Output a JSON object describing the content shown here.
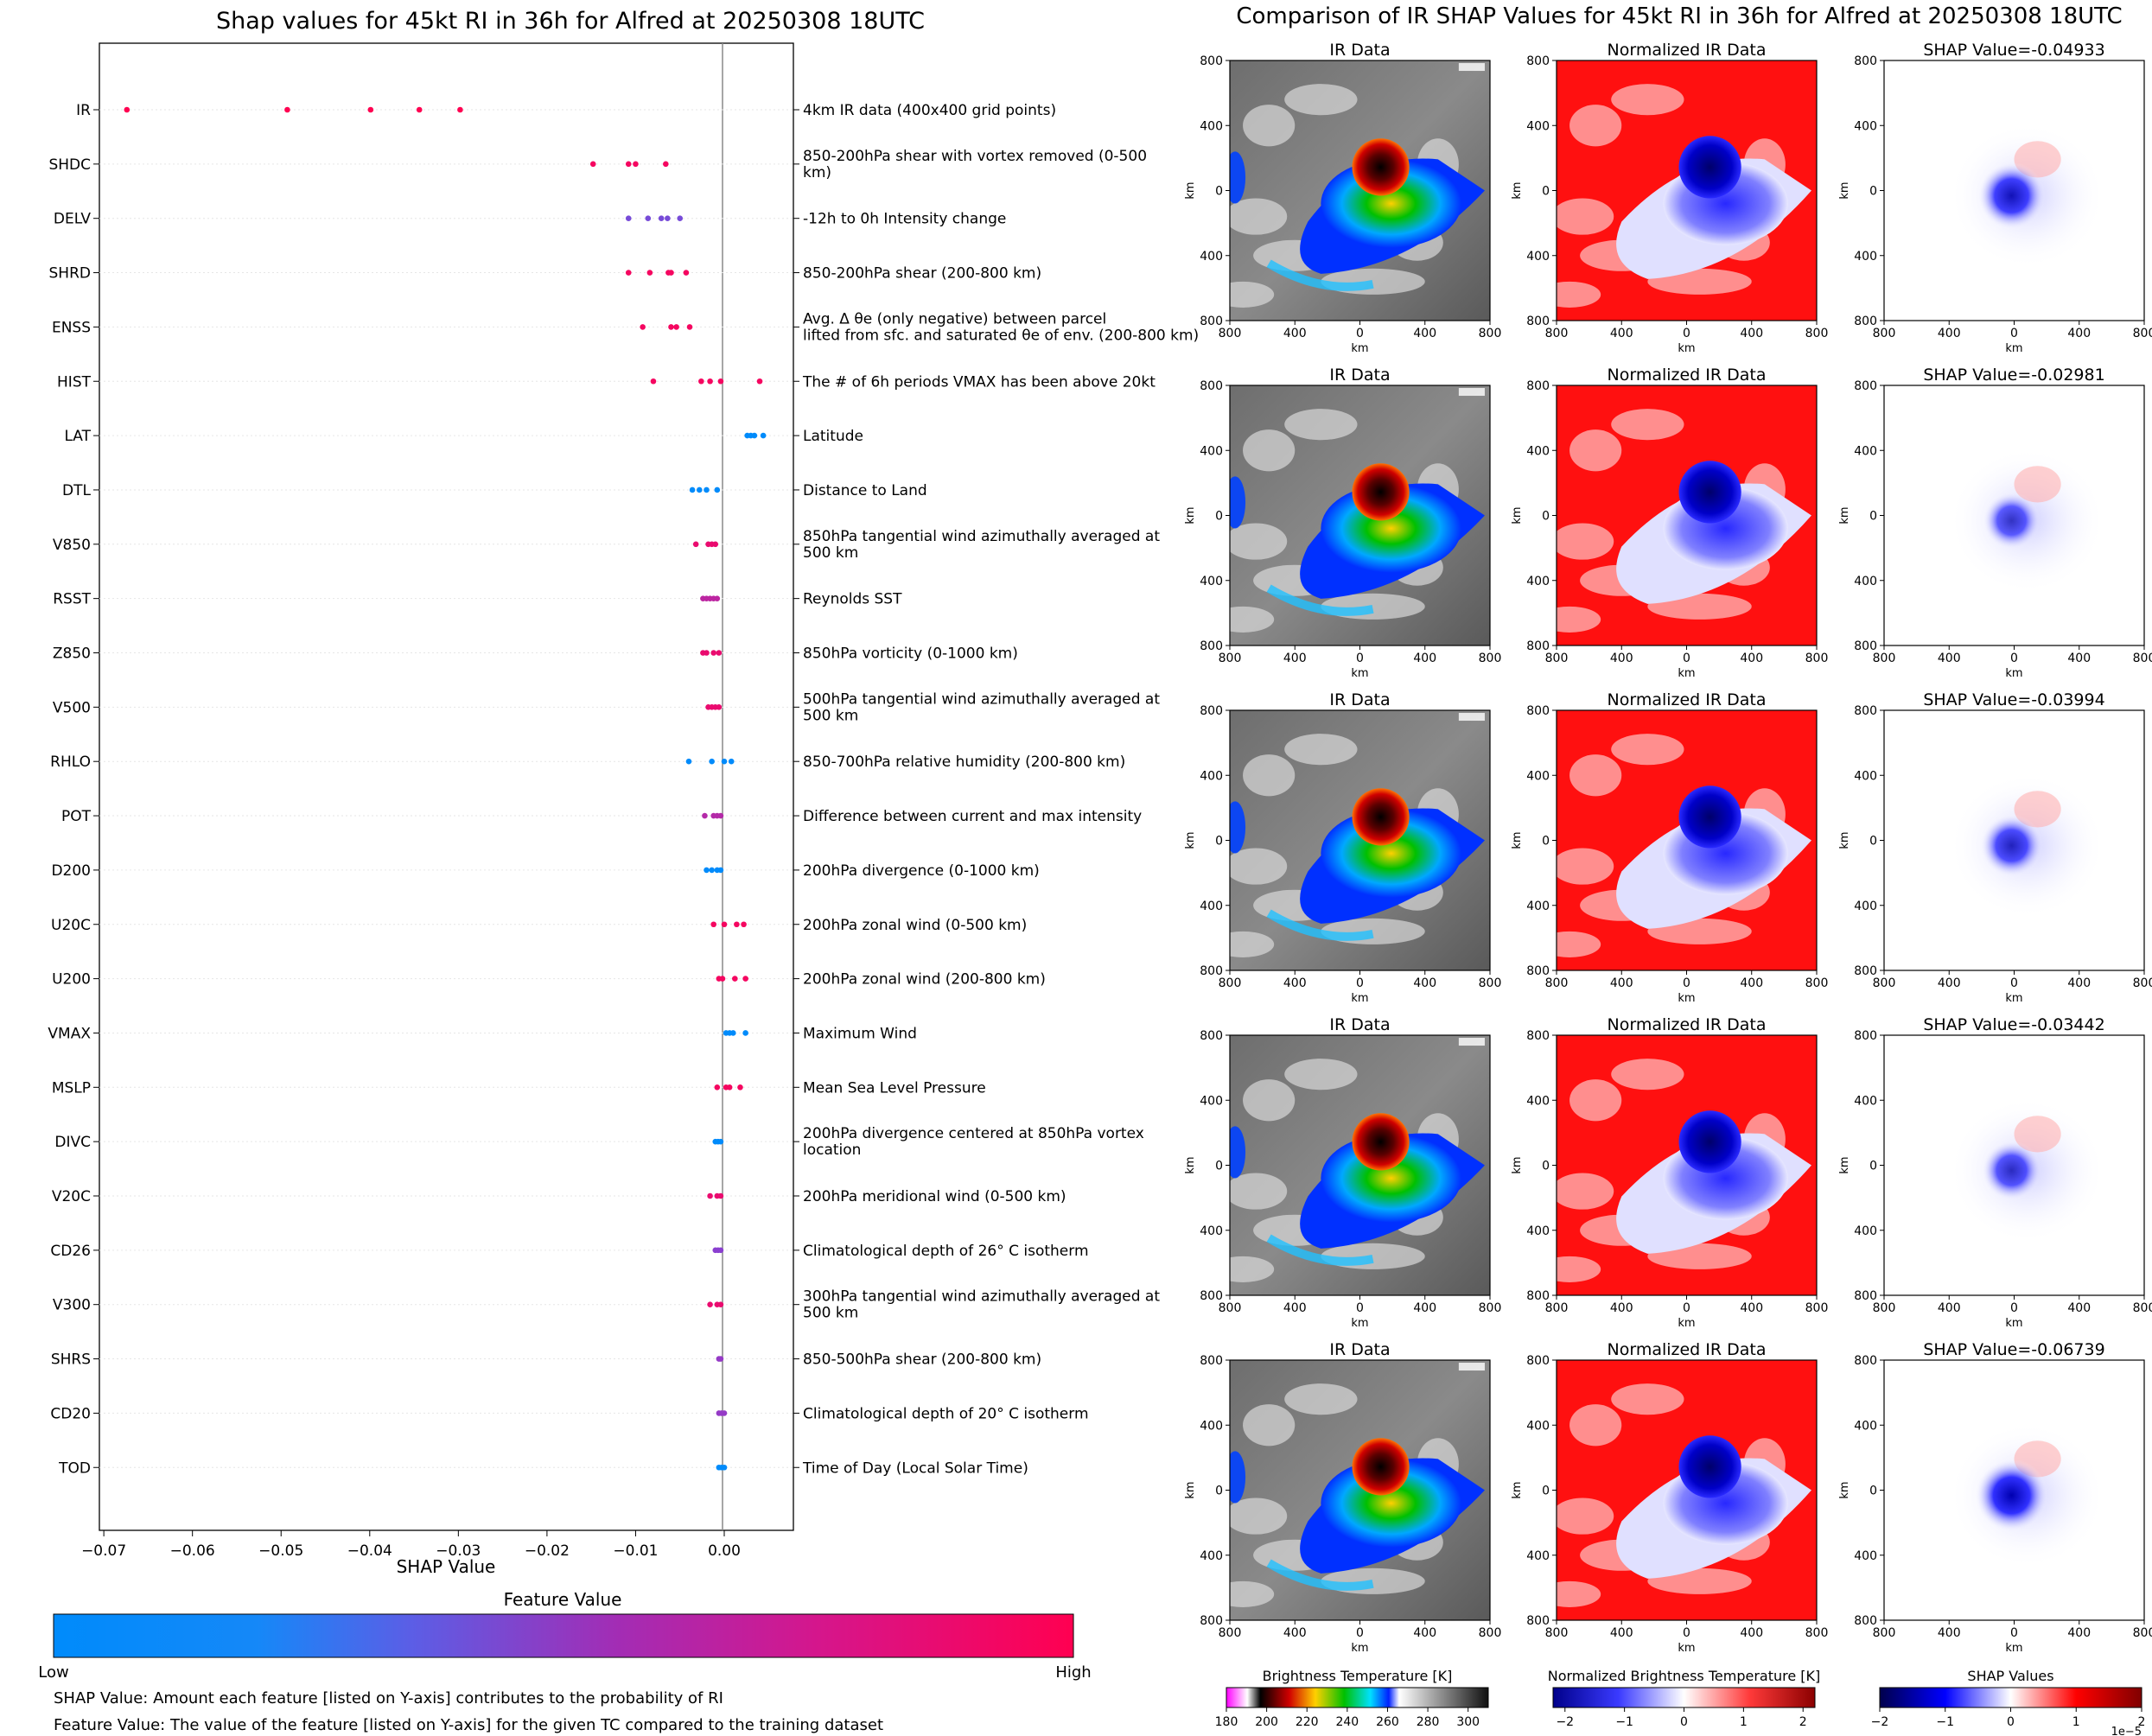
{
  "left_panel": {
    "title": "Shap values for 45kt RI in 36h for Alfred at 20250308 18UTC",
    "xlabel": "SHAP Value",
    "colorbar": {
      "title": "Feature Value",
      "low_label": "Low",
      "high_label": "High",
      "colors": [
        "#008bfb",
        "#3f6fef",
        "#8a3fd0",
        "#b42aa8",
        "#d5168c",
        "#ff0051"
      ]
    },
    "notes": [
      "SHAP Value: Amount each feature [listed on Y-axis] contributes to the probability of RI",
      "Feature Value: The value of the feature [listed on Y-axis] for the given TC compared to the training dataset"
    ]
  },
  "right_panel": {
    "title": "Comparison of IR SHAP Values for 45kt RI in 36h for Alfred at 20250308 18UTC",
    "column_titles": [
      "IR Data",
      "Normalized IR Data"
    ],
    "shap_titles": [
      "SHAP Value=-0.04933",
      "SHAP Value=-0.02981",
      "SHAP Value=-0.03994",
      "SHAP Value=-0.03442",
      "SHAP Value=-0.06739"
    ],
    "axis_label": "km",
    "tick_labels": [
      "800",
      "400",
      "0",
      "400",
      "800"
    ],
    "colorbars": [
      {
        "title": "Brightness Temperature [K]",
        "ticks": [
          "180",
          "200",
          "220",
          "240",
          "260",
          "280",
          "300"
        ]
      },
      {
        "title": "Normalized Brightness Temperature [K]",
        "ticks": [
          "−2",
          "−1",
          "0",
          "1",
          "2"
        ]
      },
      {
        "title": "SHAP Values",
        "ticks": [
          "−2",
          "−1",
          "0",
          "1",
          "2"
        ],
        "offset": "1e−5"
      }
    ]
  },
  "chart_data": [
    {
      "type": "scatter",
      "title": "Shap values for 45kt RI in 36h for Alfred at 20250308 18UTC",
      "xlabel": "SHAP Value",
      "ylabel": "",
      "xlim": [
        -0.0705,
        0.0078
      ],
      "xticks": [
        -0.07,
        -0.06,
        -0.05,
        -0.04,
        -0.03,
        -0.02,
        -0.01,
        0.0
      ],
      "xtick_labels": [
        "−0.07",
        "−0.06",
        "−0.05",
        "−0.04",
        "−0.03",
        "−0.02",
        "−0.01",
        "0.00"
      ],
      "grid": false,
      "features": [
        {
          "name": "IR",
          "description": "4km IR data (400x400 grid points)",
          "values": [
            -0.0674,
            -0.0493,
            -0.0399,
            -0.0344,
            -0.0298
          ],
          "feature_value": 1.0
        },
        {
          "name": "SHDC",
          "description": "850-200hPa shear with vortex removed (0-500 km)",
          "values": [
            -0.0148,
            -0.0108,
            -0.01,
            -0.0066
          ],
          "feature_value": 0.95
        },
        {
          "name": "DELV",
          "description": "-12h to 0h Intensity change",
          "values": [
            -0.0108,
            -0.0086,
            -0.0071,
            -0.0064,
            -0.005
          ],
          "feature_value": 0.35
        },
        {
          "name": "SHRD",
          "description": "850-200hPa shear (200-800 km)",
          "values": [
            -0.0108,
            -0.0084,
            -0.0063,
            -0.006,
            -0.0043
          ],
          "feature_value": 0.95
        },
        {
          "name": "ENSS",
          "description": "Avg. Δ θe (only negative) between parcel lifted from sfc. and saturated θe of env. (200-800 km)",
          "values": [
            -0.0092,
            -0.006,
            -0.0054,
            -0.0039
          ],
          "feature_value": 0.95
        },
        {
          "name": "HIST",
          "description": "The # of 6h periods VMAX has been above 20kt",
          "values": [
            -0.008,
            -0.0026,
            -0.0016,
            -0.0004,
            0.004
          ],
          "feature_value": 0.95
        },
        {
          "name": "LAT",
          "description": "Latitude",
          "values": [
            0.0026,
            0.003,
            0.0034,
            0.0044
          ],
          "feature_value": 0.0
        },
        {
          "name": "DTL",
          "description": "Distance to Land",
          "values": [
            -0.0036,
            -0.0028,
            -0.002,
            -0.0008
          ],
          "feature_value": 0.0
        },
        {
          "name": "V850",
          "description": "850hPa tangential wind azimuthally averaged at 500 km",
          "values": [
            -0.0032,
            -0.0018,
            -0.0014,
            -0.001
          ],
          "feature_value": 0.9
        },
        {
          "name": "RSST",
          "description": "Reynolds SST",
          "values": [
            -0.0024,
            -0.002,
            -0.0016,
            -0.0012,
            -0.0008
          ],
          "feature_value": 0.65
        },
        {
          "name": "Z850",
          "description": "850hPa vorticity (0-1000 km)",
          "values": [
            -0.0024,
            -0.002,
            -0.0012,
            -0.0006
          ],
          "feature_value": 0.9
        },
        {
          "name": "V500",
          "description": "500hPa tangential wind azimuthally averaged at 500 km",
          "values": [
            -0.0018,
            -0.0014,
            -0.001,
            -0.0006
          ],
          "feature_value": 0.9
        },
        {
          "name": "RHLO",
          "description": "850-700hPa relative humidity (200-800 km)",
          "values": [
            -0.004,
            -0.0014,
            0.0,
            0.0008
          ],
          "feature_value": 0.0
        },
        {
          "name": "POT",
          "description": "Difference between current and max intensity",
          "values": [
            -0.0022,
            -0.0012,
            -0.0008,
            -0.0004
          ],
          "feature_value": 0.6
        },
        {
          "name": "D200",
          "description": "200hPa divergence (0-1000 km)",
          "values": [
            -0.002,
            -0.0014,
            -0.0008,
            -0.0004
          ],
          "feature_value": 0.0
        },
        {
          "name": "U20C",
          "description": "200hPa zonal wind (0-500 km)",
          "values": [
            -0.0012,
            0.0,
            0.0014,
            0.0022
          ],
          "feature_value": 0.95
        },
        {
          "name": "U200",
          "description": "200hPa zonal wind (200-800 km)",
          "values": [
            -0.0006,
            -0.0002,
            0.0012,
            0.0024
          ],
          "feature_value": 0.95
        },
        {
          "name": "VMAX",
          "description": "Maximum Wind",
          "values": [
            0.0002,
            0.0006,
            0.001,
            0.0024
          ],
          "feature_value": 0.0
        },
        {
          "name": "MSLP",
          "description": "Mean Sea Level Pressure",
          "values": [
            -0.0008,
            0.0002,
            0.0006,
            0.0018
          ],
          "feature_value": 0.95
        },
        {
          "name": "DIVC",
          "description": "200hPa divergence centered at 850hPa vortex location",
          "values": [
            -0.001,
            -0.0007,
            -0.0004
          ],
          "feature_value": 0.0
        },
        {
          "name": "V20C",
          "description": "200hPa meridional wind (0-500 km)",
          "values": [
            -0.0016,
            -0.0008,
            -0.0004
          ],
          "feature_value": 0.9
        },
        {
          "name": "CD26",
          "description": "Climatological depth of 26° C isotherm",
          "values": [
            -0.001,
            -0.0007,
            -0.0004
          ],
          "feature_value": 0.4
        },
        {
          "name": "V300",
          "description": "300hPa tangential wind azimuthally averaged at 500 km",
          "values": [
            -0.0016,
            -0.0008,
            -0.0004
          ],
          "feature_value": 0.9
        },
        {
          "name": "SHRS",
          "description": "850-500hPa shear (200-800 km)",
          "values": [
            -0.0006,
            -0.0004
          ],
          "feature_value": 0.45
        },
        {
          "name": "CD20",
          "description": "Climatological depth of 20° C isotherm",
          "values": [
            -0.0006,
            -0.0003,
            0.0
          ],
          "feature_value": 0.45
        },
        {
          "name": "TOD",
          "description": "Time of Day (Local Solar Time)",
          "values": [
            -0.0006,
            -0.0003,
            0.0
          ],
          "feature_value": 0.0
        }
      ]
    },
    {
      "type": "heatmap",
      "title": "Comparison of IR SHAP Values for 45kt RI in 36h for Alfred at 20250308 18UTC",
      "rows": 5,
      "columns": [
        "IR Data",
        "Normalized IR Data",
        "SHAP Value"
      ],
      "shap_values": [
        -0.04933,
        -0.02981,
        -0.03994,
        -0.03442,
        -0.06739
      ],
      "xlabel": "km",
      "ylabel": "km",
      "axis_range_km": [
        -800,
        800
      ],
      "colorbars": [
        {
          "title": "Brightness Temperature [K]",
          "range": [
            180,
            310
          ]
        },
        {
          "title": "Normalized Brightness Temperature [K]",
          "range": [
            -2.2,
            2.2
          ]
        },
        {
          "title": "SHAP Values",
          "range": [
            -2e-05,
            2e-05
          ]
        }
      ]
    }
  ]
}
